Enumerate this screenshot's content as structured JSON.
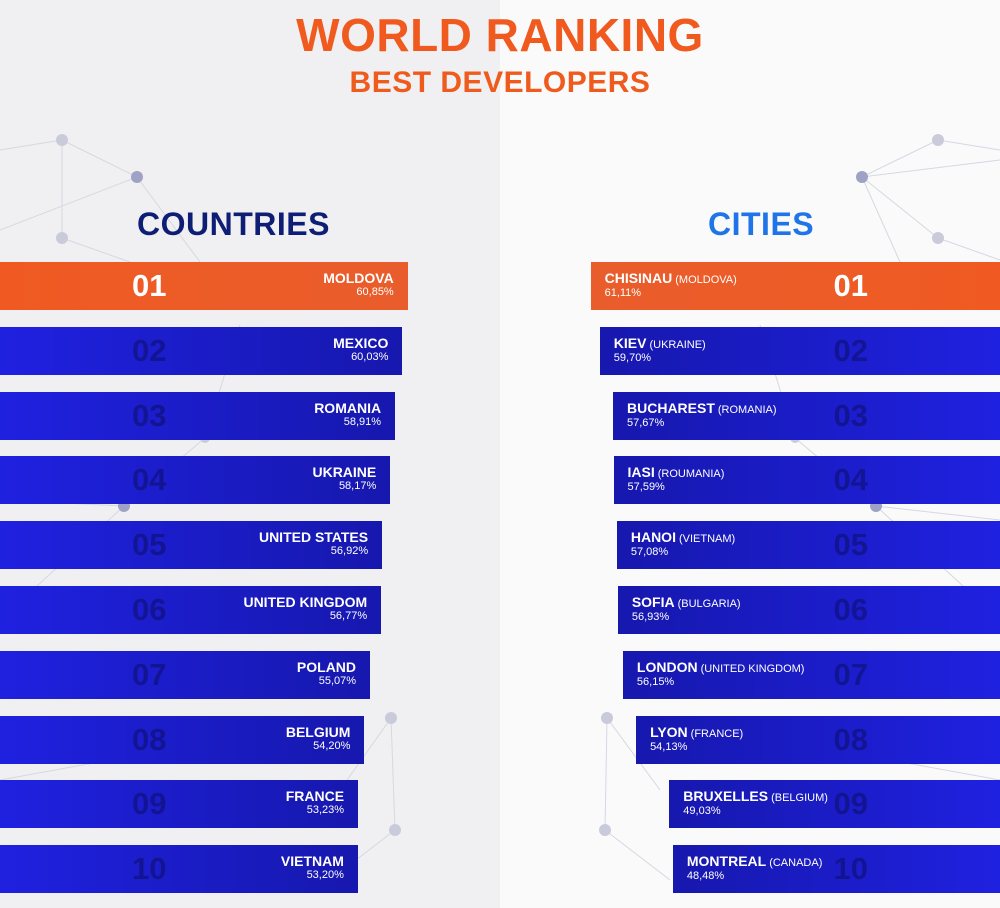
{
  "title": "WORLD RANKING",
  "subtitle": "BEST DEVELOPERS",
  "colors": {
    "accent": "#f05a1e",
    "bar": "#1f21e0",
    "countries_heading": "#0d1e74",
    "cities_heading": "#1f74e8"
  },
  "chart_data": [
    {
      "type": "bar",
      "title": "COUNTRIES",
      "categories": [
        "MOLDOVA",
        "MEXICO",
        "ROMANIA",
        "UKRAINE",
        "UNITED STATES",
        "UNITED KINGDOM",
        "POLAND",
        "BELGIUM",
        "FRANCE",
        "VIETNAM"
      ],
      "ranks": [
        "01",
        "02",
        "03",
        "04",
        "05",
        "06",
        "07",
        "08",
        "09",
        "10"
      ],
      "values": [
        60.85,
        60.03,
        58.91,
        58.17,
        56.92,
        56.77,
        55.07,
        54.2,
        53.23,
        53.2
      ],
      "value_labels": [
        "60,85%",
        "60,03%",
        "58,91%",
        "58,17%",
        "56,92%",
        "56,77%",
        "55,07%",
        "54,20%",
        "53,23%",
        "53,20%"
      ]
    },
    {
      "type": "bar",
      "title": "CITIES",
      "categories": [
        "CHISINAU",
        "KIEV",
        "BUCHAREST",
        "IASI",
        "HANOI",
        "SOFIA",
        "LONDON",
        "LYON",
        "BRUXELLES",
        "MONTREAL"
      ],
      "countries": [
        "(MOLDOVA)",
        "(UKRAINE)",
        "(ROMANIA)",
        "(ROUMANIA)",
        "(VIETNAM)",
        "(BULGARIA)",
        "(UNITED KINGDOM)",
        "(FRANCE)",
        "(BELGIUM)",
        "(CANADA)"
      ],
      "ranks": [
        "01",
        "02",
        "03",
        "04",
        "05",
        "06",
        "07",
        "08",
        "09",
        "10"
      ],
      "values": [
        61.11,
        59.7,
        57.67,
        57.59,
        57.08,
        56.93,
        56.15,
        54.13,
        49.03,
        48.48
      ],
      "value_labels": [
        "61,11%",
        "59,70%",
        "57,67%",
        "57,59%",
        "57,08%",
        "56,93%",
        "56,15%",
        "54,13%",
        "49,03%",
        "48,48%"
      ]
    }
  ]
}
